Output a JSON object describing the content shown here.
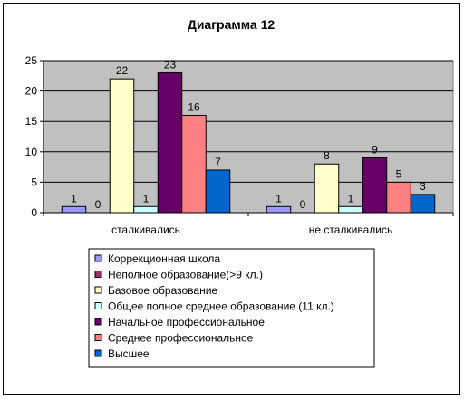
{
  "chart_data": {
    "type": "bar",
    "title": "Диаграмма 12",
    "categories": [
      "сталкивались",
      "не сталкивались"
    ],
    "ylim": [
      0,
      25
    ],
    "yticks": [
      0,
      5,
      10,
      15,
      20,
      25
    ],
    "grid": true,
    "legend_position": "bottom",
    "series": [
      {
        "name": "Коррекционная школа",
        "color": "#9999FF",
        "values": [
          1,
          1
        ]
      },
      {
        "name": "Неполное образование(>9 кл.)",
        "color": "#993366",
        "values": [
          0,
          0
        ]
      },
      {
        "name": "Базовое образование",
        "color": "#FFFFCC",
        "values": [
          22,
          8
        ]
      },
      {
        "name": "Общее полное среднее образование (11 кл.)",
        "color": "#CCFFFF",
        "values": [
          1,
          1
        ]
      },
      {
        "name": "Начальное профессиональное",
        "color": "#660066",
        "values": [
          23,
          9
        ]
      },
      {
        "name": "Среднее профессиональное",
        "color": "#FF8080",
        "values": [
          16,
          5
        ]
      },
      {
        "name": "Высшее",
        "color": "#0066CC",
        "values": [
          7,
          3
        ]
      }
    ]
  }
}
